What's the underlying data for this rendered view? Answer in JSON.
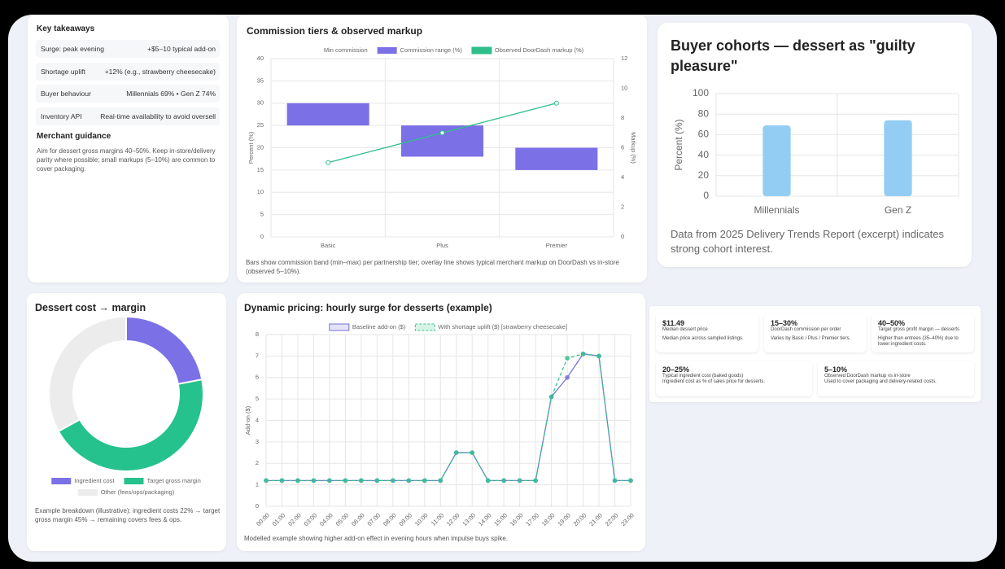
{
  "takeaways": {
    "title": "Key takeaways",
    "rows": [
      {
        "label": "Surge: peak evening",
        "value": "+$5–10 typical add-on"
      },
      {
        "label": "Shortage uplift",
        "value": "+12% (e.g., strawberry cheesecake)"
      },
      {
        "label": "Buyer behaviour",
        "value": "Millennials 69% • Gen Z 74%"
      },
      {
        "label": "Inventory API",
        "value": "Real-time availability to avoid oversell"
      }
    ]
  },
  "guidance": {
    "title": "Merchant guidance",
    "text": "Aim for dessert gross margins 40–50%. Keep in-store/delivery parity where possible; small markups (5–10%) are common to cover packaging."
  },
  "kpis": [
    {
      "value": "$11.49",
      "label": "Median dessert price",
      "note": "Median price across sampled listings."
    },
    {
      "value": "15–30%",
      "label": "DoorDash commission per order",
      "note": "Varies by Basic / Plus / Premier tiers."
    },
    {
      "value": "40–50%",
      "label": "Target gross profit margin — desserts",
      "note": "Higher than entrees (35–40%) due to lower ingredient costs."
    },
    {
      "value": "20–25%",
      "label": "Typical ingredient cost (baked goods)",
      "note": "Ingredient cost as % of sales price for desserts."
    },
    {
      "value": "5–10%",
      "label": "Observed DoorDash markup vs in-store",
      "note": "Used to cover packaging and delivery-related costs."
    }
  ],
  "chart_data": [
    {
      "type": "bar",
      "stacked": true,
      "title": "Commission tiers & observed markup",
      "caption": "Bars show commission band (min–max) per partnership tier; overlay line shows typical merchant markup on DoorDash vs in-store (observed 5–10%).",
      "categories": [
        "Basic",
        "Plus",
        "Premier"
      ],
      "series": [
        {
          "name": "Min commission",
          "color": "transparent",
          "values": [
            25,
            18,
            15
          ]
        },
        {
          "name": "Commission range (%)",
          "color": "#7b70e6",
          "values": [
            5,
            7,
            5
          ]
        },
        {
          "name": "Observed DoorDash markup (%)",
          "type": "line",
          "axis": "y2",
          "color": "#2fbf8b",
          "values": [
            5,
            7,
            9
          ]
        }
      ],
      "ylabel": "Percent (%)",
      "y2label": "Markup (%)",
      "ylim": [
        0,
        40
      ],
      "yticks": [
        0,
        5,
        10,
        15,
        20,
        25,
        30,
        35,
        40
      ],
      "y2lim": [
        0,
        12
      ],
      "y2ticks": [
        0,
        2,
        4,
        6,
        8,
        10,
        12
      ],
      "grid": true,
      "legend": "top"
    },
    {
      "type": "bar",
      "title": "Buyer cohorts — dessert as \"guilty pleasure\"",
      "caption": "Data from 2025 Delivery Trends Report (excerpt) indicates strong cohort interest.",
      "categories": [
        "Millennials",
        "Gen Z"
      ],
      "values": [
        69,
        74
      ],
      "color": "#93cdf3",
      "ylabel": "Percent (%)",
      "ylim": [
        0,
        100
      ],
      "yticks": [
        0,
        20,
        40,
        60,
        80,
        100
      ],
      "grid": true
    },
    {
      "type": "doughnut",
      "title": "Dessert cost → margin",
      "caption": "Example breakdown (illustrative): ingredient costs 22% → target gross margin 45% → remaining covers fees & ops.",
      "categories": [
        "Ingredient cost",
        "Target gross margin",
        "Other (fees/ops/packaging)"
      ],
      "values": [
        22,
        45,
        33
      ],
      "colors": [
        "#7b70e6",
        "#25c28d",
        "#ececec"
      ],
      "legend": "bottom"
    },
    {
      "type": "line",
      "title": "Dynamic pricing: hourly surge for desserts (example)",
      "caption": "Modelled example showing higher add-on effect in evening hours when impulse buys spike.",
      "categories": [
        "00:00",
        "01:00",
        "02:00",
        "03:00",
        "04:00",
        "05:00",
        "06:00",
        "07:00",
        "08:00",
        "09:00",
        "10:00",
        "11:00",
        "12:00",
        "13:00",
        "14:00",
        "15:00",
        "16:00",
        "17:00",
        "18:00",
        "19:00",
        "20:00",
        "21:00",
        "22:00",
        "23:00"
      ],
      "series": [
        {
          "name": "Baseline add-on ($)",
          "color": "#7672dc",
          "values": [
            1.2,
            1.2,
            1.2,
            1.2,
            1.2,
            1.2,
            1.2,
            1.2,
            1.2,
            1.2,
            1.2,
            1.2,
            2.5,
            2.5,
            1.2,
            1.2,
            1.2,
            1.2,
            5.1,
            6.0,
            7.1,
            7.0,
            1.2,
            1.2
          ]
        },
        {
          "name": "With shortage uplift ($) [strawberry cheesecake]",
          "color": "#35c48e",
          "dashed": true,
          "values": [
            1.2,
            1.2,
            1.2,
            1.2,
            1.2,
            1.2,
            1.2,
            1.2,
            1.2,
            1.2,
            1.2,
            1.2,
            2.5,
            2.5,
            1.2,
            1.2,
            1.2,
            1.2,
            5.1,
            6.9,
            7.1,
            7.0,
            1.2,
            1.2
          ]
        }
      ],
      "ylabel": "Add-on ($)",
      "ylim": [
        0,
        8
      ],
      "yticks": [
        0,
        1,
        2,
        3,
        4,
        5,
        6,
        7,
        8
      ],
      "grid": true,
      "legend": "top"
    }
  ]
}
